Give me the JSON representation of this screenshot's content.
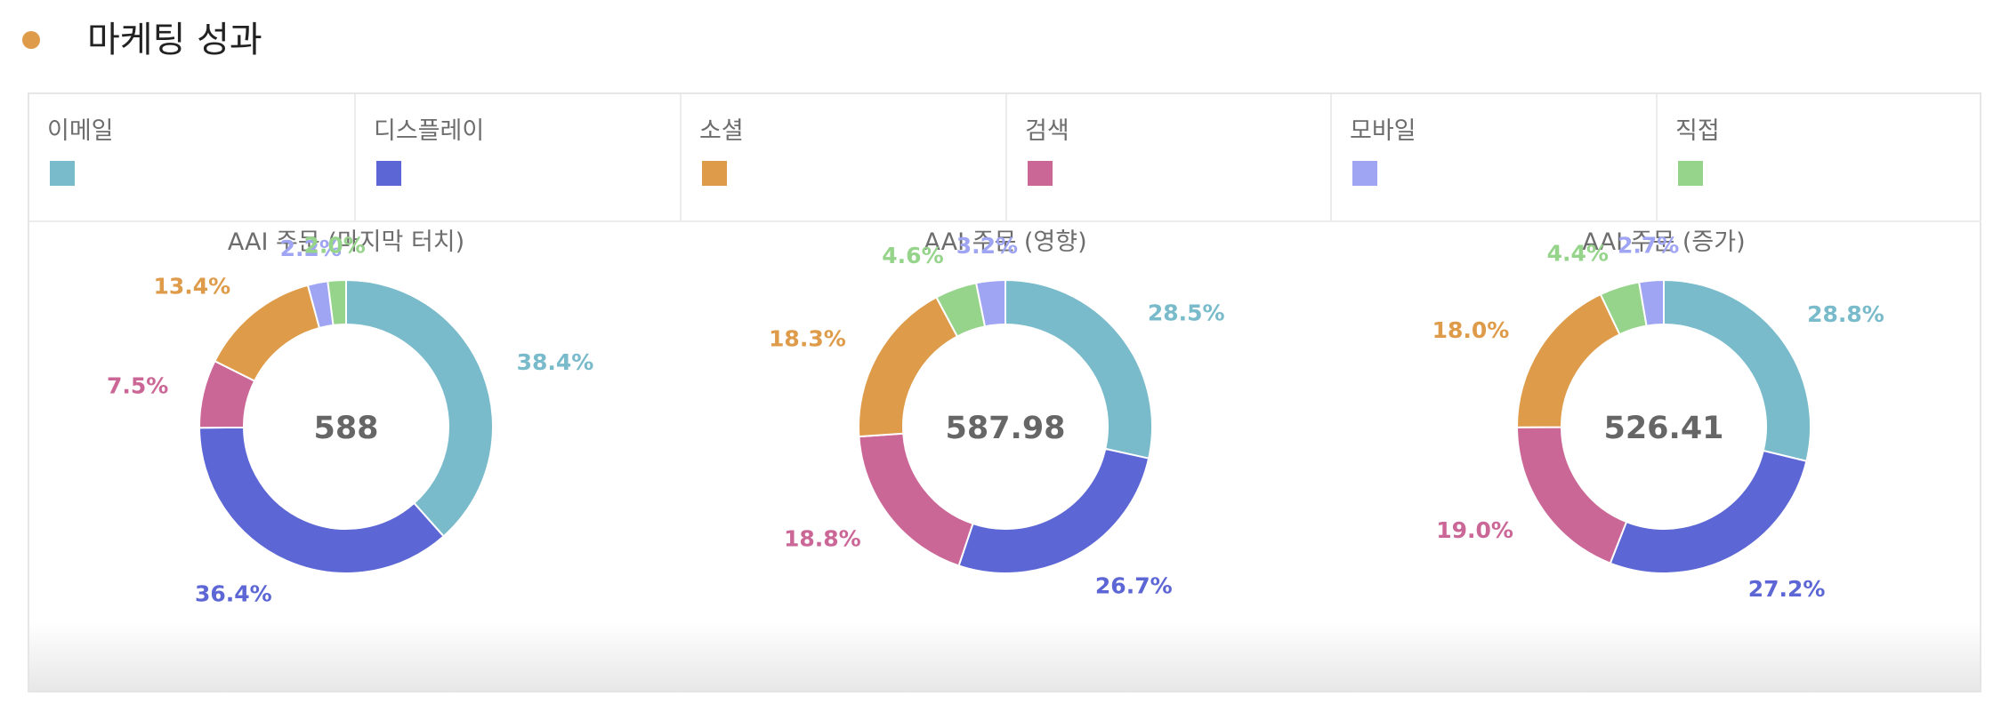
{
  "header": {
    "title": "마케팅 성과",
    "dot_color": "#DE9B49"
  },
  "legend": [
    {
      "label": "이메일",
      "color": "#79BBCB"
    },
    {
      "label": "디스플레이",
      "color": "#5C66D4"
    },
    {
      "label": "소셜",
      "color": "#DE9B49"
    },
    {
      "label": "검색",
      "color": "#CB6796"
    },
    {
      "label": "모바일",
      "color": "#9FA5F2"
    },
    {
      "label": "직접",
      "color": "#96D48C"
    }
  ],
  "chart_data": [
    {
      "type": "pie",
      "donut": true,
      "title": "AAI 주문 (마지막 터치)",
      "total_label": "588",
      "series": [
        {
          "name": "이메일",
          "value": 38.4,
          "label": "38.4%"
        },
        {
          "name": "디스플레이",
          "value": 36.4,
          "label": "36.4%"
        },
        {
          "name": "소셜",
          "value": 13.4,
          "label": "13.4%"
        },
        {
          "name": "검색",
          "value": 7.5,
          "label": "7.5%"
        },
        {
          "name": "모바일",
          "value": 2.2,
          "label": "2.2%"
        },
        {
          "name": "직접",
          "value": 2.0,
          "label": "2.0%"
        }
      ]
    },
    {
      "type": "pie",
      "donut": true,
      "title": "AAI 주문 (영향)",
      "total_label": "587.98",
      "series": [
        {
          "name": "이메일",
          "value": 28.5,
          "label": "28.5%"
        },
        {
          "name": "디스플레이",
          "value": 26.7,
          "label": "26.7%"
        },
        {
          "name": "소셜",
          "value": 18.3,
          "label": "18.3%"
        },
        {
          "name": "검색",
          "value": 18.8,
          "label": "18.8%"
        },
        {
          "name": "모바일",
          "value": 3.2,
          "label": "3.2%"
        },
        {
          "name": "직접",
          "value": 4.6,
          "label": "4.6%"
        }
      ]
    },
    {
      "type": "pie",
      "donut": true,
      "title": "AAI 주문 (증가)",
      "total_label": "526.41",
      "series": [
        {
          "name": "이메일",
          "value": 28.8,
          "label": "28.8%"
        },
        {
          "name": "디스플레이",
          "value": 27.2,
          "label": "27.2%"
        },
        {
          "name": "소셜",
          "value": 18.0,
          "label": "18.0%"
        },
        {
          "name": "검색",
          "value": 19.0,
          "label": "19.0%"
        },
        {
          "name": "모바일",
          "value": 2.7,
          "label": "2.7%"
        },
        {
          "name": "직접",
          "value": 4.4,
          "label": "4.4%"
        }
      ]
    }
  ]
}
